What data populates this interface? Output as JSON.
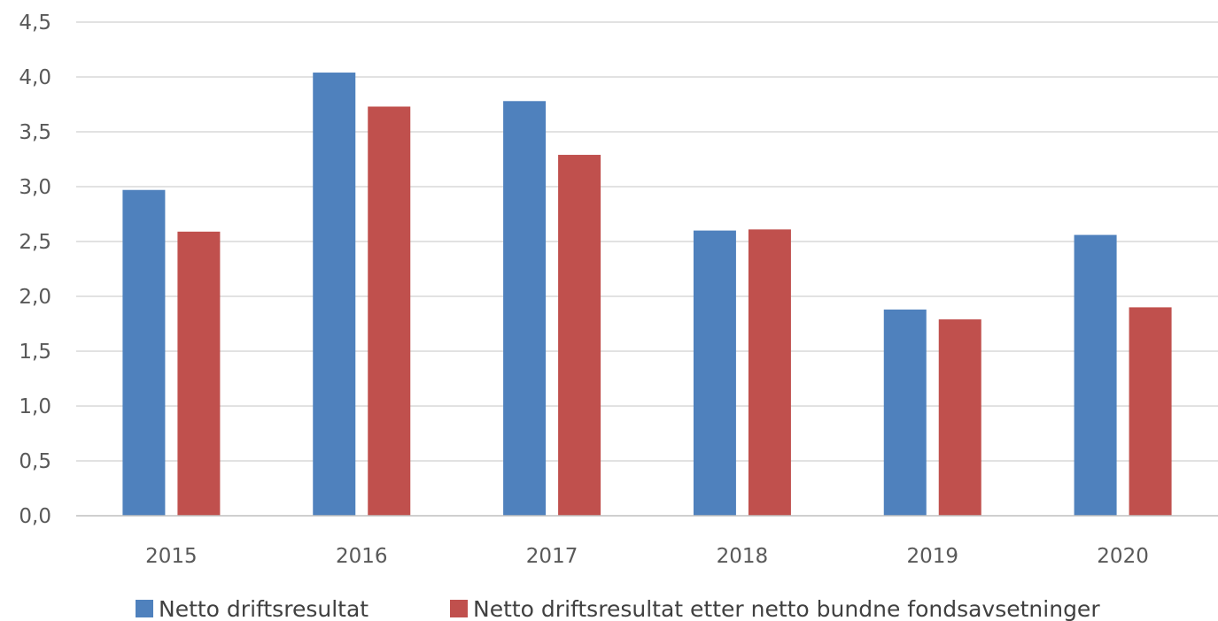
{
  "chart_data": {
    "type": "bar",
    "categories": [
      "2015",
      "2016",
      "2017",
      "2018",
      "2019",
      "2020"
    ],
    "series": [
      {
        "name": "Netto driftsresultat",
        "color": "#4f81bd",
        "values": [
          2.97,
          4.04,
          3.78,
          2.6,
          1.88,
          2.56
        ]
      },
      {
        "name": "Netto driftsresultat etter netto bundne fondsavsetninger",
        "color": "#c0504d",
        "values": [
          2.59,
          3.73,
          3.29,
          2.61,
          1.79,
          1.9
        ]
      }
    ],
    "title": "",
    "xlabel": "",
    "ylabel": "",
    "ylim": [
      0,
      4.5
    ],
    "yticks": [
      "0,0",
      "0,5",
      "1,0",
      "1,5",
      "2,0",
      "2,5",
      "3,0",
      "3,5",
      "4,0",
      "4,5"
    ],
    "grid": true,
    "legend": "bottom"
  }
}
